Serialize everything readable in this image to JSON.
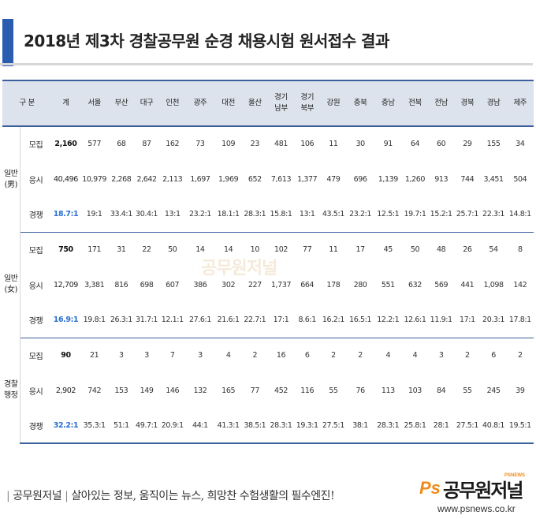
{
  "title": "2018년 제3차 경찰공무원 순경 채용시험 원서접수 결과",
  "accent_color": "#2a5db0",
  "ratio_highlight_color": "#2a6fd1",
  "header": {
    "group_label": "구 분",
    "columns": [
      "계",
      "서울",
      "부산",
      "대구",
      "인천",
      "광주",
      "대전",
      "울산",
      [
        "경기",
        "남부"
      ],
      [
        "경기",
        "북부"
      ],
      "강원",
      "충북",
      "충남",
      "전북",
      "전남",
      "경북",
      "경남",
      "제주"
    ]
  },
  "groups": [
    {
      "label_lines": [
        "일반",
        "(男)"
      ],
      "rows": [
        {
          "kind": "모집",
          "values": [
            "2,160",
            "577",
            "68",
            "87",
            "162",
            "73",
            "109",
            "23",
            "481",
            "106",
            "11",
            "30",
            "91",
            "64",
            "60",
            "29",
            "155",
            "34"
          ]
        },
        {
          "kind": "응시",
          "values": [
            "40,496",
            "10,979",
            "2,268",
            "2,642",
            "2,113",
            "1,697",
            "1,969",
            "652",
            "7,613",
            "1,377",
            "479",
            "696",
            "1,139",
            "1,260",
            "913",
            "744",
            "3,451",
            "504"
          ]
        },
        {
          "kind": "경쟁",
          "values": [
            "18.7:1",
            "19:1",
            "33.4:1",
            "30.4:1",
            "13:1",
            "23.2:1",
            "18.1:1",
            "28.3:1",
            "15.8:1",
            "13:1",
            "43.5:1",
            "23.2:1",
            "12.5:1",
            "19.7:1",
            "15.2:1",
            "25.7:1",
            "22.3:1",
            "14.8:1"
          ]
        }
      ]
    },
    {
      "label_lines": [
        "일반",
        "(女)"
      ],
      "rows": [
        {
          "kind": "모집",
          "values": [
            "750",
            "171",
            "31",
            "22",
            "50",
            "14",
            "14",
            "10",
            "102",
            "77",
            "11",
            "17",
            "45",
            "50",
            "48",
            "26",
            "54",
            "8"
          ]
        },
        {
          "kind": "응시",
          "values": [
            "12,709",
            "3,381",
            "816",
            "698",
            "607",
            "386",
            "302",
            "227",
            "1,737",
            "664",
            "178",
            "280",
            "551",
            "632",
            "569",
            "441",
            "1,098",
            "142"
          ]
        },
        {
          "kind": "경쟁",
          "values": [
            "16.9:1",
            "19.8:1",
            "26.3:1",
            "31.7:1",
            "12.1:1",
            "27.6:1",
            "21.6:1",
            "22.7:1",
            "17:1",
            "8.6:1",
            "16.2:1",
            "16.5:1",
            "12.2:1",
            "12.6:1",
            "11.9:1",
            "17:1",
            "20.3:1",
            "17.8:1"
          ]
        }
      ]
    },
    {
      "label_lines": [
        "경찰",
        "행정"
      ],
      "rows": [
        {
          "kind": "모집",
          "values": [
            "90",
            "21",
            "3",
            "3",
            "7",
            "3",
            "4",
            "2",
            "16",
            "6",
            "2",
            "2",
            "4",
            "4",
            "3",
            "2",
            "6",
            "2"
          ]
        },
        {
          "kind": "응시",
          "values": [
            "2,902",
            "742",
            "153",
            "149",
            "146",
            "132",
            "165",
            "77",
            "452",
            "116",
            "55",
            "76",
            "113",
            "103",
            "84",
            "55",
            "245",
            "39"
          ]
        },
        {
          "kind": "경쟁",
          "values": [
            "32.2:1",
            "35.3:1",
            "51:1",
            "49.7:1",
            "20.9:1",
            "44:1",
            "41.3:1",
            "38.5:1",
            "28.3:1",
            "19.3:1",
            "27.5:1",
            "38:1",
            "28.3:1",
            "25.8:1",
            "28:1",
            "27.5:1",
            "40.8:1",
            "19.5:1"
          ]
        }
      ]
    }
  ],
  "watermark": "공무원저널",
  "footer": {
    "brand": "공무원저널",
    "slogan": "살아있는 정보, 움직이는 뉴스, 희망찬 수험생활의 필수엔진!"
  },
  "logo": {
    "ps": "Ps",
    "name": "공무원저널",
    "tag": "PSNEWS",
    "url": "www.psnews.co.kr"
  }
}
